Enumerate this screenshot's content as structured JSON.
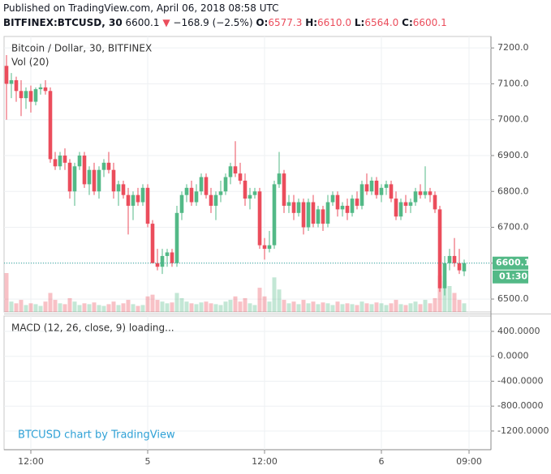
{
  "header": {
    "published": "Published on TradingView.com, April 06, 2018 08:58 UTC",
    "symbol": "BITFINEX:BTCUSD, 30",
    "last": "6600.1",
    "arrow": "▼",
    "change": "−168.9 (−2.5%)",
    "o_label": "O:",
    "o": "6577.3",
    "h_label": "H:",
    "h": "6610.0",
    "l_label": "L:",
    "l": "6564.0",
    "c_label": "C:",
    "c": "6600.1"
  },
  "watermark": "BTCUSD chart by TradingView",
  "chart_data": [
    {
      "type": "candlestick",
      "title": "Bitcoin / Dollar, 30, BITFINEX",
      "subtitle": "Vol (20)",
      "up_color": "#53b987",
      "down_color": "#eb4d5c",
      "grid": true,
      "price_label": "6600.1",
      "countdown_label": "01:30",
      "last_price": 6600.1,
      "last_color": "#26a69a",
      "xlim": [
        -0.5,
        99.5
      ],
      "ylim": [
        6464,
        7232
      ],
      "yticks": [
        {
          "value": 6500,
          "label": "6500.0"
        },
        {
          "value": 6600,
          "label": "6600.0"
        },
        {
          "value": 6700,
          "label": "6700.0"
        },
        {
          "value": 6800,
          "label": "6800.0"
        },
        {
          "value": 6900,
          "label": "6900.0"
        },
        {
          "value": 7000,
          "label": "7000.0"
        },
        {
          "value": 7100,
          "label": "7100.0"
        },
        {
          "value": 7200,
          "label": "7200.0"
        }
      ],
      "xticks": [
        {
          "value": 5,
          "label": "12:00"
        },
        {
          "value": 29,
          "label": "5"
        },
        {
          "value": 53,
          "label": "12:00"
        },
        {
          "value": 77,
          "label": "6"
        },
        {
          "value": 95,
          "label": "09:00"
        }
      ],
      "x": [
        0,
        1,
        2,
        3,
        4,
        5,
        6,
        7,
        8,
        9,
        10,
        11,
        12,
        13,
        14,
        15,
        16,
        17,
        18,
        19,
        20,
        21,
        22,
        23,
        24,
        25,
        26,
        27,
        28,
        29,
        30,
        31,
        32,
        33,
        34,
        35,
        36,
        37,
        38,
        39,
        40,
        41,
        42,
        43,
        44,
        45,
        46,
        47,
        48,
        49,
        50,
        51,
        52,
        53,
        54,
        55,
        56,
        57,
        58,
        59,
        60,
        61,
        62,
        63,
        64,
        65,
        66,
        67,
        68,
        69,
        70,
        71,
        72,
        73,
        74,
        75,
        76,
        77,
        78,
        79,
        80,
        81,
        82,
        83,
        84,
        85,
        86,
        87,
        88,
        89,
        90,
        91,
        92,
        93,
        94
      ],
      "open": [
        7150,
        7100,
        7110,
        7080,
        7060,
        7080,
        7050,
        7085,
        7090,
        7080,
        6890,
        6870,
        6900,
        6880,
        6800,
        6870,
        6900,
        6820,
        6860,
        6800,
        6860,
        6880,
        6860,
        6800,
        6820,
        6790,
        6760,
        6790,
        6770,
        6810,
        6710,
        6600,
        6590,
        6620,
        6630,
        6600,
        6740,
        6790,
        6810,
        6770,
        6800,
        6840,
        6790,
        6760,
        6790,
        6800,
        6840,
        6870,
        6850,
        6830,
        6780,
        6790,
        6800,
        6650,
        6640,
        6650,
        6820,
        6850,
        6760,
        6770,
        6740,
        6770,
        6700,
        6770,
        6710,
        6750,
        6710,
        6770,
        6790,
        6750,
        6760,
        6740,
        6780,
        6760,
        6820,
        6800,
        6830,
        6790,
        6810,
        6820,
        6780,
        6730,
        6770,
        6760,
        6770,
        6800,
        6790,
        6800,
        6790,
        6750,
        6530,
        6600,
        6620,
        6600,
        6577.3
      ],
      "high": [
        7180,
        7130,
        7120,
        7110,
        7090,
        7095,
        7090,
        7100,
        7110,
        7090,
        6910,
        6910,
        6920,
        6890,
        6880,
        6910,
        6910,
        6870,
        6880,
        6870,
        6890,
        6910,
        6880,
        6830,
        6830,
        6810,
        6800,
        6810,
        6820,
        6820,
        6720,
        6640,
        6640,
        6640,
        6640,
        6760,
        6800,
        6820,
        6830,
        6820,
        6850,
        6850,
        6810,
        6800,
        6830,
        6850,
        6880,
        6940,
        6880,
        6850,
        6810,
        6810,
        6810,
        6670,
        6690,
        6830,
        6910,
        6860,
        6790,
        6790,
        6780,
        6780,
        6780,
        6790,
        6760,
        6760,
        6790,
        6800,
        6800,
        6770,
        6780,
        6790,
        6800,
        6830,
        6850,
        6840,
        6840,
        6820,
        6830,
        6830,
        6800,
        6780,
        6790,
        6780,
        6810,
        6820,
        6870,
        6810,
        6800,
        6760,
        6620,
        6640,
        6670,
        6640,
        6610.0
      ],
      "low": [
        7000,
        7060,
        7050,
        7010,
        7030,
        7020,
        7040,
        7070,
        7070,
        6880,
        6860,
        6860,
        6860,
        6780,
        6760,
        6860,
        6810,
        6790,
        6790,
        6780,
        6840,
        6850,
        6780,
        6760,
        6780,
        6680,
        6720,
        6760,
        6760,
        6700,
        6600,
        6580,
        6570,
        6590,
        6590,
        6590,
        6720,
        6770,
        6760,
        6760,
        6790,
        6780,
        6740,
        6720,
        6770,
        6790,
        6820,
        6840,
        6820,
        6760,
        6750,
        6780,
        6640,
        6610,
        6630,
        6640,
        6810,
        6740,
        6740,
        6720,
        6730,
        6680,
        6690,
        6700,
        6700,
        6690,
        6700,
        6760,
        6730,
        6730,
        6720,
        6730,
        6750,
        6750,
        6790,
        6790,
        6780,
        6770,
        6790,
        6770,
        6720,
        6720,
        6740,
        6740,
        6760,
        6780,
        6780,
        6770,
        6740,
        6520,
        6510,
        6580,
        6590,
        6570,
        6564.0
      ],
      "close": [
        7100,
        7110,
        7080,
        7060,
        7080,
        7050,
        7085,
        7090,
        7080,
        6890,
        6870,
        6900,
        6880,
        6800,
        6870,
        6900,
        6820,
        6860,
        6800,
        6860,
        6880,
        6860,
        6800,
        6820,
        6790,
        6760,
        6790,
        6770,
        6810,
        6710,
        6600,
        6590,
        6620,
        6630,
        6600,
        6740,
        6790,
        6810,
        6770,
        6800,
        6840,
        6790,
        6760,
        6790,
        6800,
        6840,
        6870,
        6850,
        6830,
        6780,
        6790,
        6800,
        6650,
        6640,
        6650,
        6820,
        6850,
        6760,
        6770,
        6740,
        6770,
        6700,
        6770,
        6710,
        6750,
        6710,
        6770,
        6790,
        6750,
        6760,
        6740,
        6780,
        6760,
        6820,
        6800,
        6830,
        6790,
        6810,
        6820,
        6780,
        6730,
        6770,
        6760,
        6770,
        6800,
        6790,
        6800,
        6790,
        6750,
        6530,
        6600,
        6620,
        6600,
        6580,
        6600.1
      ],
      "volume": [
        45,
        12,
        10,
        14,
        8,
        10,
        9,
        7,
        12,
        22,
        14,
        10,
        9,
        16,
        12,
        8,
        10,
        9,
        11,
        8,
        7,
        9,
        12,
        8,
        10,
        14,
        9,
        7,
        8,
        18,
        20,
        14,
        12,
        10,
        11,
        22,
        16,
        12,
        10,
        9,
        11,
        12,
        10,
        9,
        8,
        12,
        14,
        18,
        12,
        16,
        10,
        8,
        28,
        18,
        12,
        40,
        26,
        14,
        10,
        12,
        9,
        14,
        10,
        12,
        9,
        11,
        10,
        8,
        12,
        9,
        10,
        9,
        8,
        12,
        10,
        9,
        11,
        10,
        8,
        10,
        14,
        9,
        8,
        10,
        12,
        9,
        14,
        10,
        16,
        42,
        36,
        30,
        22,
        14,
        10
      ]
    },
    {
      "type": "indicator",
      "title": "MACD (12, 26, close, 9) loading...",
      "ylim": [
        -1500,
        647
      ],
      "yticks": [
        {
          "value": 400,
          "label": "400.0000"
        },
        {
          "value": 0,
          "label": "0.0000"
        },
        {
          "value": -400,
          "label": "-400.0000"
        },
        {
          "value": -800,
          "label": "-800.0000"
        },
        {
          "value": -1200,
          "label": "-1200.0000"
        }
      ]
    }
  ]
}
